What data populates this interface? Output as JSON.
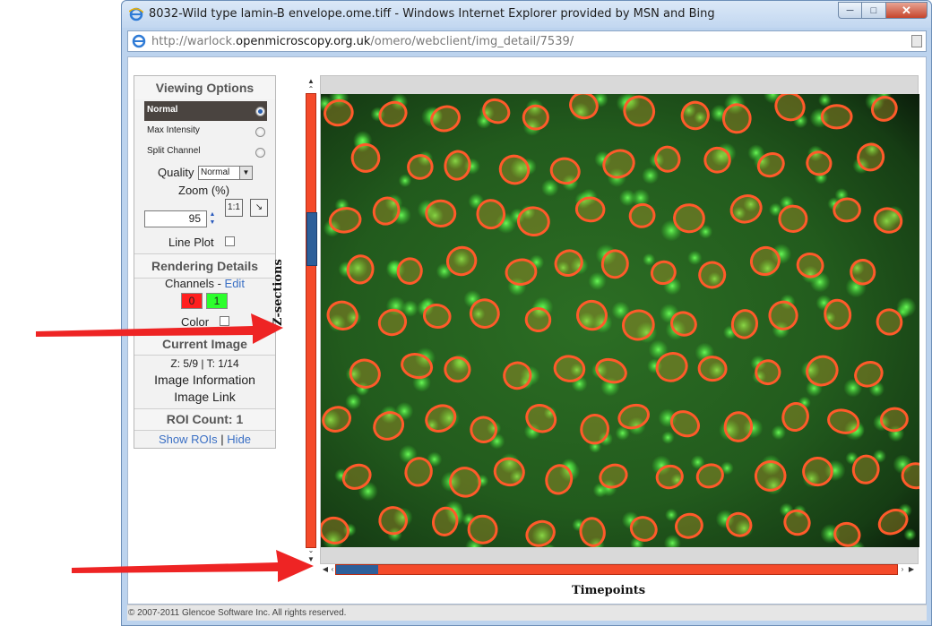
{
  "window": {
    "title": "8032-Wild type lamin-B envelope.ome.tiff - Windows Internet Explorer provided by MSN and Bing",
    "url_prefix": "http://warlock.",
    "url_host": "openmicroscopy.org.uk",
    "url_path": "/omero/webclient/img_detail/7539/"
  },
  "panel": {
    "viewing_options_title": "Viewing Options",
    "options": [
      "Normal",
      "Max Intensity",
      "Split Channel"
    ],
    "selected_option": "Normal",
    "quality_label": "Quality",
    "quality_value": "Normal",
    "zoom_label": "Zoom (%)",
    "zoom_value": "95",
    "zoom_1to1_label": "1:1",
    "line_plot_label": "Line Plot",
    "rendering_title": "Rendering Details",
    "channels_label": "Channels - ",
    "channels_edit": "Edit",
    "channels": [
      {
        "label": "0",
        "color": "#ff1f1f"
      },
      {
        "label": "1",
        "color": "#2cff2c"
      }
    ],
    "color_label": "Color",
    "current_image_title": "Current Image",
    "position_text": "Z: 5/9 | T: 1/14",
    "image_information_link": "Image Information",
    "image_link": "Image Link",
    "roi_count": "ROI Count: 1",
    "show_rois": "Show ROIs",
    "sep": " | ",
    "hide": "Hide"
  },
  "viewer": {
    "z_label": "Z-sections",
    "t_label": "Timepoints",
    "z_current": 5,
    "z_total": 9,
    "t_current": 1,
    "t_total": 14
  },
  "status": {
    "copyright": "© 2007-2011 Glencoe Software Inc. All rights reserved."
  },
  "colors": {
    "slider_track": "#f44a2a",
    "slider_thumb": "#2d5f9a",
    "annotation_arrow": "#ee2424"
  }
}
